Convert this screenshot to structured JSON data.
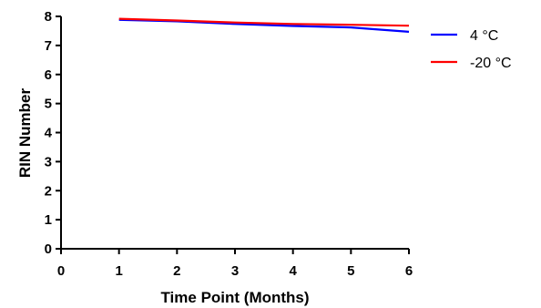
{
  "chart_data": {
    "type": "line",
    "title": "",
    "xlabel": "Time Point (Months)",
    "ylabel": "RIN Number",
    "xlim": [
      0,
      6
    ],
    "ylim": [
      0,
      8
    ],
    "x_ticks": [
      "0",
      "1",
      "2",
      "3",
      "4",
      "5",
      "6"
    ],
    "y_ticks": [
      "0",
      "1",
      "2",
      "3",
      "4",
      "5",
      "6",
      "7",
      "8"
    ],
    "grid": false,
    "legend_position": "top-right",
    "series": [
      {
        "name": "4 °C",
        "color": "#0000ff",
        "x": [
          1,
          2,
          3,
          4,
          5,
          6
        ],
        "y": [
          7.88,
          7.83,
          7.74,
          7.67,
          7.62,
          7.47
        ]
      },
      {
        "name": "-20 °C",
        "color": "#ff0000",
        "x": [
          1,
          2,
          3,
          4,
          5,
          6
        ],
        "y": [
          7.92,
          7.86,
          7.79,
          7.74,
          7.71,
          7.68
        ]
      }
    ]
  }
}
